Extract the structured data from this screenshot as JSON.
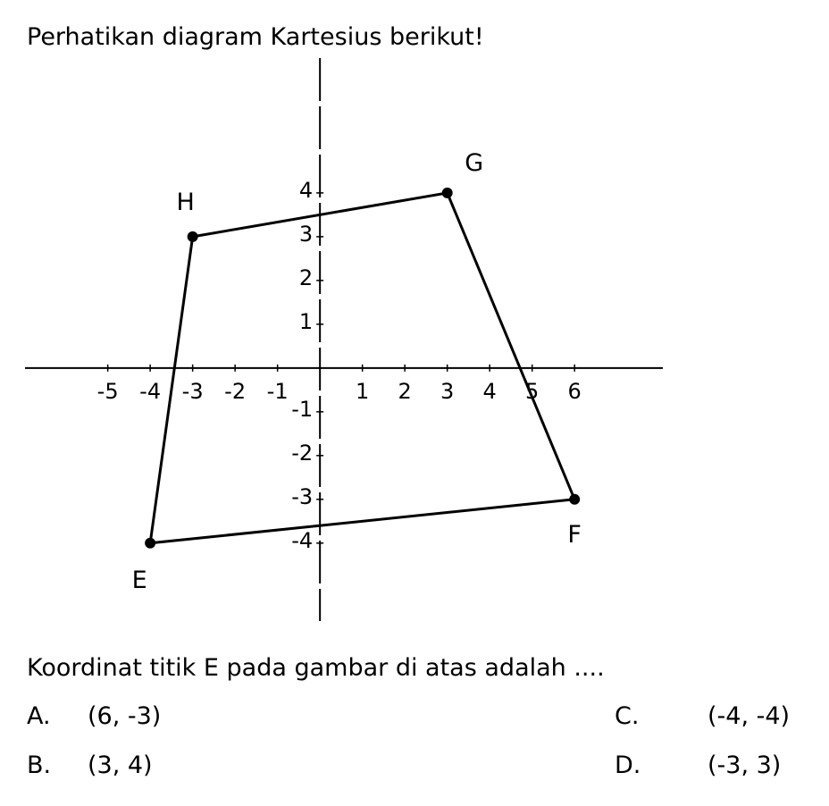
{
  "title": "Perhatikan diagram Kartesius berikut!",
  "chart_data": {
    "type": "polygon",
    "points": [
      {
        "name": "H",
        "x": -3,
        "y": 3
      },
      {
        "name": "G",
        "x": 3,
        "y": 4
      },
      {
        "name": "F",
        "x": 6,
        "y": -3
      },
      {
        "name": "E",
        "x": -4,
        "y": -4
      }
    ],
    "xlim": [
      -6.95,
      8.08
    ],
    "ylim": [
      -5.78,
      7.08
    ],
    "xticks": [
      -5,
      -4,
      -3,
      -2,
      -1,
      1,
      2,
      3,
      4,
      5,
      6
    ],
    "yticks": [
      -4,
      -3,
      -2,
      -1,
      1,
      2,
      3,
      4
    ],
    "color": "#000000"
  },
  "question": "Koordinat titik E pada gambar di atas adalah ....",
  "options": [
    {
      "letter": "A.",
      "text": "(6, -3)"
    },
    {
      "letter": "B.",
      "text": "(3, 4)"
    },
    {
      "letter": "C.",
      "text": "(-4, -4)"
    },
    {
      "letter": "D.",
      "text": "(-3, 3)"
    }
  ]
}
